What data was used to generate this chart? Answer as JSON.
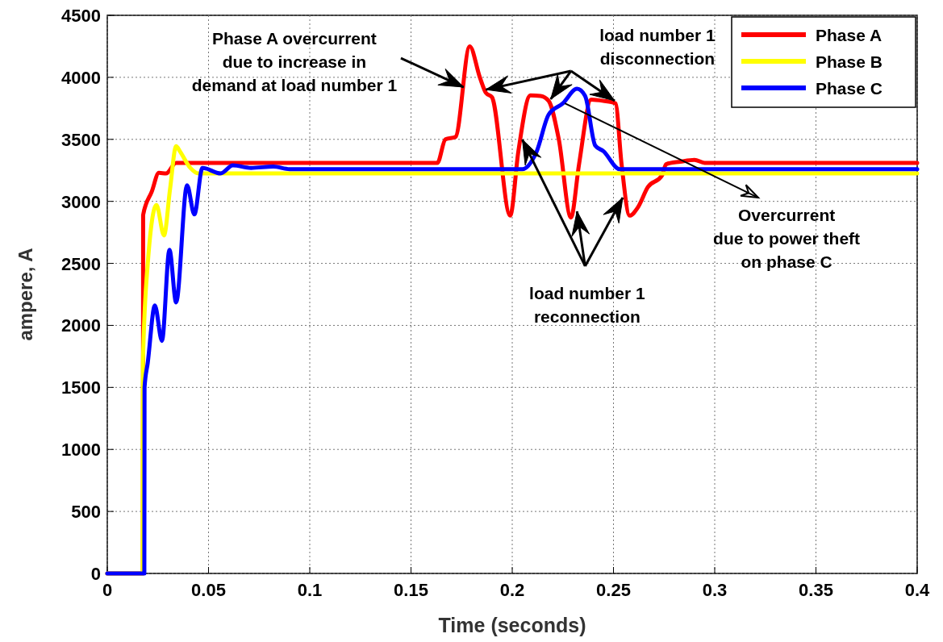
{
  "chart_data": {
    "type": "line",
    "xlabel": "Time (seconds)",
    "ylabel": "ampere, A",
    "xlim": [
      0,
      0.4
    ],
    "xticks": [
      0,
      0.05,
      0.1,
      0.15,
      0.2,
      0.25,
      0.3,
      0.35,
      0.4
    ],
    "ylim": [
      0,
      4500
    ],
    "yticks": [
      0,
      500,
      1000,
      1500,
      2000,
      2500,
      3000,
      3500,
      4000,
      4500
    ],
    "grid": true,
    "legend": "top right",
    "line_style": "solid",
    "marker": "none",
    "series": [
      {
        "name": "Phase A",
        "color": "#ff0000",
        "x": [
          0,
          0.0176,
          0.0177,
          0.022,
          0.0255,
          0.029,
          0.034,
          0.163,
          0.167,
          0.172,
          0.179,
          0.184,
          0.187,
          0.19,
          0.199,
          0.203,
          0.209,
          0.214,
          0.218,
          0.223,
          0.229,
          0.233,
          0.239,
          0.245,
          0.251,
          0.254,
          0.258,
          0.262,
          0.267,
          0.274,
          0.276,
          0.283,
          0.29,
          0.295,
          0.4
        ],
        "values": [
          0,
          0,
          2890,
          3080,
          3230,
          3225,
          3310,
          3310,
          3500,
          3520,
          4250,
          4000,
          3875,
          3840,
          2885,
          3400,
          3855,
          3850,
          3810,
          3500,
          2870,
          3300,
          3820,
          3810,
          3790,
          3300,
          2885,
          2950,
          3115,
          3210,
          3300,
          3320,
          3335,
          3310,
          3310
        ]
      },
      {
        "name": "Phase B",
        "color": "#ffff00",
        "x": [
          0,
          0.0175,
          0.0176,
          0.02,
          0.0243,
          0.028,
          0.031,
          0.034,
          0.036,
          0.041,
          0.045,
          0.4
        ],
        "values": [
          0,
          0,
          1700,
          2500,
          2970,
          2725,
          3100,
          3445,
          3400,
          3270,
          3225,
          3225
        ]
      },
      {
        "name": "Phase C",
        "color": "#0000ff",
        "x": [
          0,
          0.0183,
          0.0184,
          0.02,
          0.0235,
          0.027,
          0.0307,
          0.034,
          0.0394,
          0.043,
          0.047,
          0.056,
          0.062,
          0.071,
          0.082,
          0.09,
          0.205,
          0.212,
          0.218,
          0.225,
          0.232,
          0.236,
          0.241,
          0.245,
          0.253,
          0.4
        ],
        "values": [
          0,
          0,
          1500,
          1700,
          2160,
          1875,
          2610,
          2185,
          3130,
          2895,
          3270,
          3225,
          3290,
          3270,
          3280,
          3260,
          3260,
          3400,
          3700,
          3790,
          3908,
          3850,
          3450,
          3405,
          3260,
          3260
        ]
      }
    ],
    "annotations": [
      {
        "text": "Phase A overcurrent\ndue to increase in\ndemand at load number 1",
        "x": 0.176,
        "y": 3921
      },
      "load number 1\ndisconnection",
      {
        "text": "Overcurrent\ndue to power theft\non phase C",
        "x": 0.226,
        "y": 3791
      },
      {
        "text": "load number 1\nreconnection",
        "x": 0.205,
        "y": 3498
      }
    ]
  }
}
